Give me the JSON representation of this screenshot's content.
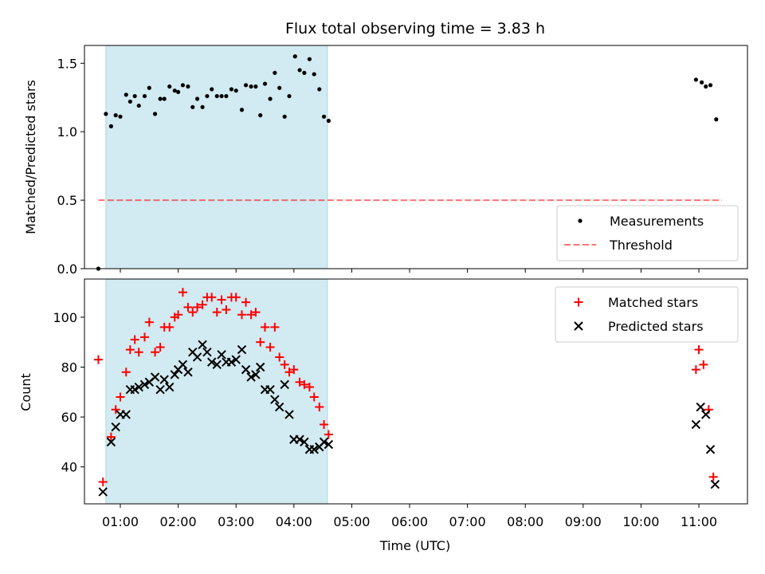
{
  "title": "Flux total observing time = 3.83 h",
  "colors": {
    "shade": "#add8e6",
    "threshold": "#ff0000",
    "matched": "#ff0000",
    "predicted": "#000000",
    "measurement": "#000000"
  },
  "chart_data": [
    {
      "type": "scatter",
      "panel": "top",
      "ylabel": "Matched/Predicted stars",
      "xlabel": "",
      "xlim": [
        0.38,
        11.84
      ],
      "ylim": [
        0,
        1.63
      ],
      "yticks": [
        0.0,
        0.5,
        1.0,
        1.5
      ],
      "ytick_labels": [
        "0.0",
        "0.5",
        "1.0",
        "1.5"
      ],
      "shaded_span": [
        0.75,
        4.58
      ],
      "legend": {
        "position": "lower right",
        "entries": [
          "Measurements",
          "Threshold"
        ]
      },
      "threshold": {
        "name": "Threshold",
        "y": 0.5,
        "x": [
          0.62,
          11.4
        ],
        "style": "dashed"
      },
      "series": [
        {
          "name": "Measurements",
          "marker": "dot",
          "points": [
            [
              0.62,
              0.0
            ],
            [
              0.75,
              1.13
            ],
            [
              0.84,
              1.04
            ],
            [
              0.92,
              1.12
            ],
            [
              1.0,
              1.11
            ],
            [
              1.1,
              1.27
            ],
            [
              1.17,
              1.22
            ],
            [
              1.25,
              1.26
            ],
            [
              1.32,
              1.19
            ],
            [
              1.42,
              1.26
            ],
            [
              1.5,
              1.32
            ],
            [
              1.6,
              1.13
            ],
            [
              1.69,
              1.24
            ],
            [
              1.76,
              1.24
            ],
            [
              1.85,
              1.33
            ],
            [
              1.94,
              1.3
            ],
            [
              2.0,
              1.29
            ],
            [
              2.08,
              1.34
            ],
            [
              2.17,
              1.33
            ],
            [
              2.25,
              1.18
            ],
            [
              2.33,
              1.24
            ],
            [
              2.42,
              1.18
            ],
            [
              2.5,
              1.26
            ],
            [
              2.58,
              1.31
            ],
            [
              2.67,
              1.26
            ],
            [
              2.75,
              1.26
            ],
            [
              2.83,
              1.26
            ],
            [
              2.92,
              1.31
            ],
            [
              3.0,
              1.3
            ],
            [
              3.1,
              1.16
            ],
            [
              3.17,
              1.34
            ],
            [
              3.26,
              1.33
            ],
            [
              3.34,
              1.33
            ],
            [
              3.42,
              1.12
            ],
            [
              3.5,
              1.35
            ],
            [
              3.59,
              1.24
            ],
            [
              3.67,
              1.43
            ],
            [
              3.75,
              1.32
            ],
            [
              3.84,
              1.11
            ],
            [
              3.92,
              1.26
            ],
            [
              4.02,
              1.55
            ],
            [
              4.1,
              1.45
            ],
            [
              4.18,
              1.43
            ],
            [
              4.27,
              1.53
            ],
            [
              4.35,
              1.42
            ],
            [
              4.44,
              1.31
            ],
            [
              4.52,
              1.11
            ],
            [
              4.6,
              1.08
            ],
            [
              10.95,
              1.38
            ],
            [
              11.05,
              1.36
            ],
            [
              11.12,
              1.33
            ],
            [
              11.2,
              1.34
            ],
            [
              11.3,
              1.09
            ]
          ]
        }
      ]
    },
    {
      "type": "scatter",
      "panel": "bottom",
      "xlabel": "Time (UTC)",
      "ylabel": "Count",
      "xlim": [
        0.38,
        11.84
      ],
      "ylim": [
        25.2,
        115.3
      ],
      "xticks": [
        1,
        2,
        3,
        4,
        5,
        6,
        7,
        8,
        9,
        10,
        11
      ],
      "xtick_labels": [
        "01:00",
        "02:00",
        "03:00",
        "04:00",
        "05:00",
        "06:00",
        "07:00",
        "08:00",
        "09:00",
        "10:00",
        "11:00"
      ],
      "yticks": [
        40,
        60,
        80,
        100
      ],
      "ytick_labels": [
        "40",
        "60",
        "80",
        "100"
      ],
      "shaded_span": [
        0.75,
        4.58
      ],
      "legend": {
        "position": "upper right",
        "entries": [
          "Matched stars",
          "Predicted stars"
        ]
      },
      "series": [
        {
          "name": "Matched stars",
          "marker": "plus",
          "points": [
            [
              0.62,
              83
            ],
            [
              0.7,
              34
            ],
            [
              0.84,
              52
            ],
            [
              0.92,
              63
            ],
            [
              1.0,
              68
            ],
            [
              1.1,
              78
            ],
            [
              1.17,
              87
            ],
            [
              1.25,
              91
            ],
            [
              1.32,
              86
            ],
            [
              1.42,
              92
            ],
            [
              1.5,
              98
            ],
            [
              1.6,
              86
            ],
            [
              1.69,
              88
            ],
            [
              1.76,
              96
            ],
            [
              1.85,
              96
            ],
            [
              1.94,
              100
            ],
            [
              2.0,
              101
            ],
            [
              2.08,
              110
            ],
            [
              2.17,
              104
            ],
            [
              2.25,
              102
            ],
            [
              2.33,
              104
            ],
            [
              2.42,
              105
            ],
            [
              2.5,
              108
            ],
            [
              2.58,
              108
            ],
            [
              2.67,
              102
            ],
            [
              2.75,
              107
            ],
            [
              2.83,
              103
            ],
            [
              2.92,
              108
            ],
            [
              3.0,
              108
            ],
            [
              3.1,
              101
            ],
            [
              3.17,
              106
            ],
            [
              3.26,
              101
            ],
            [
              3.34,
              102
            ],
            [
              3.42,
              90
            ],
            [
              3.5,
              96
            ],
            [
              3.59,
              88
            ],
            [
              3.67,
              96
            ],
            [
              3.75,
              84
            ],
            [
              3.84,
              81
            ],
            [
              3.92,
              78
            ],
            [
              4.0,
              79
            ],
            [
              4.1,
              74
            ],
            [
              4.18,
              73
            ],
            [
              4.27,
              72
            ],
            [
              4.35,
              68
            ],
            [
              4.44,
              64
            ],
            [
              4.52,
              57
            ],
            [
              4.6,
              53
            ],
            [
              10.95,
              79
            ],
            [
              11.0,
              87
            ],
            [
              11.08,
              81
            ],
            [
              11.17,
              63
            ],
            [
              11.25,
              36
            ]
          ]
        },
        {
          "name": "Predicted stars",
          "marker": "x",
          "points": [
            [
              0.7,
              30
            ],
            [
              0.84,
              50
            ],
            [
              0.92,
              56
            ],
            [
              1.0,
              61
            ],
            [
              1.1,
              61
            ],
            [
              1.17,
              71
            ],
            [
              1.25,
              71
            ],
            [
              1.32,
              72
            ],
            [
              1.42,
              73
            ],
            [
              1.5,
              74
            ],
            [
              1.6,
              76
            ],
            [
              1.69,
              71
            ],
            [
              1.76,
              75
            ],
            [
              1.85,
              72
            ],
            [
              1.94,
              77
            ],
            [
              2.0,
              79
            ],
            [
              2.08,
              81
            ],
            [
              2.17,
              78
            ],
            [
              2.25,
              86
            ],
            [
              2.33,
              84
            ],
            [
              2.42,
              89
            ],
            [
              2.5,
              86
            ],
            [
              2.58,
              82
            ],
            [
              2.67,
              81
            ],
            [
              2.75,
              85
            ],
            [
              2.83,
              82
            ],
            [
              2.92,
              82
            ],
            [
              3.0,
              83
            ],
            [
              3.1,
              87
            ],
            [
              3.17,
              79
            ],
            [
              3.26,
              76
            ],
            [
              3.34,
              77
            ],
            [
              3.42,
              80
            ],
            [
              3.5,
              71
            ],
            [
              3.59,
              71
            ],
            [
              3.67,
              67
            ],
            [
              3.75,
              64
            ],
            [
              3.84,
              73
            ],
            [
              3.92,
              61
            ],
            [
              4.0,
              51
            ],
            [
              4.1,
              51
            ],
            [
              4.18,
              50
            ],
            [
              4.27,
              47
            ],
            [
              4.35,
              47
            ],
            [
              4.44,
              48
            ],
            [
              4.52,
              50
            ],
            [
              4.6,
              49
            ],
            [
              10.95,
              57
            ],
            [
              11.03,
              64
            ],
            [
              11.12,
              61
            ],
            [
              11.2,
              47
            ],
            [
              11.28,
              33
            ]
          ]
        }
      ]
    }
  ]
}
